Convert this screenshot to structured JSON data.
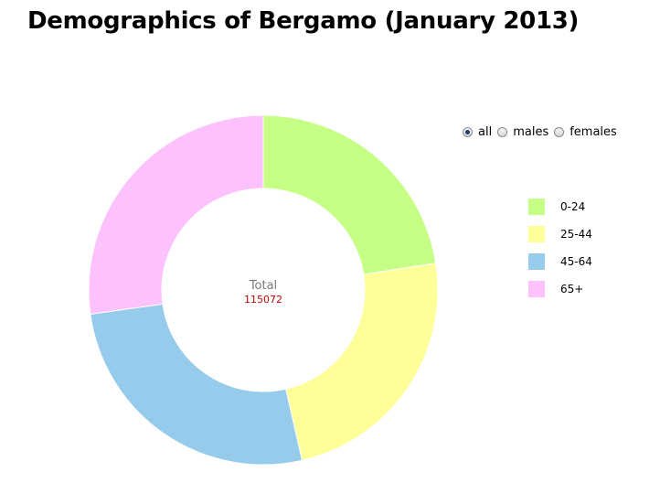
{
  "title": "Demographics of Bergamo (January 2013)",
  "filter": {
    "options": [
      "all",
      "males",
      "females"
    ],
    "selected": "all"
  },
  "center": {
    "label": "Total",
    "value": "115072"
  },
  "chart_data": {
    "type": "pie",
    "variant": "donut",
    "title": "Demographics of Bergamo (January 2013)",
    "total": 115072,
    "categories": [
      "0-24",
      "25-44",
      "45-64",
      "65+"
    ],
    "values": [
      25950,
      27480,
      30330,
      31312
    ],
    "colors": [
      "#c5ff85",
      "#ffff99",
      "#96cbeb",
      "#fdc1fd"
    ],
    "legend": "right"
  }
}
